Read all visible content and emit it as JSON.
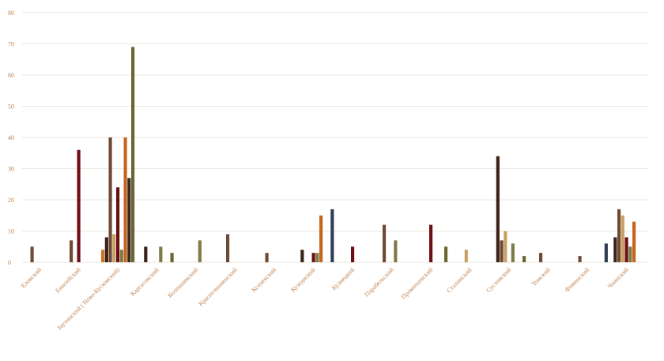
{
  "chart_data": {
    "type": "bar",
    "categories": [
      "Еловский",
      "Енисейский",
      "Заутинский ( Ново-Кусковский)",
      "Каргасокский",
      "Колпашевский",
      "Красноэнаменский",
      "Ксеневский",
      "Кузедиский",
      "Кузнецкий",
      "Парабельский",
      "Прокопьевский",
      "Сталинский",
      "Сусловский",
      "Томский",
      "Фоминский",
      "Чаинский"
    ],
    "series": [
      {
        "color": "#d2731f",
        "values": [
          null,
          null,
          4,
          null,
          null,
          null,
          null,
          null,
          null,
          null,
          null,
          null,
          null,
          null,
          null,
          null
        ]
      },
      {
        "color": "#3a2218",
        "values": [
          null,
          null,
          8,
          5,
          null,
          null,
          null,
          4,
          null,
          null,
          null,
          null,
          34,
          null,
          null,
          8
        ]
      },
      {
        "color": "#6e4a36",
        "values": [
          5,
          7,
          40,
          null,
          null,
          9,
          3,
          null,
          null,
          12,
          null,
          null,
          7,
          3,
          2,
          17
        ]
      },
      {
        "color": "#c8a060",
        "values": [
          null,
          null,
          9,
          null,
          null,
          null,
          null,
          null,
          null,
          null,
          null,
          4,
          10,
          null,
          null,
          15
        ]
      },
      {
        "color": "#6b0f14",
        "values": [
          null,
          36,
          24,
          null,
          null,
          null,
          null,
          3,
          5,
          null,
          12,
          null,
          null,
          null,
          null,
          8
        ]
      },
      {
        "color": "#7d7a45",
        "values": [
          null,
          null,
          4,
          5,
          7,
          null,
          null,
          3,
          null,
          7,
          null,
          null,
          6,
          null,
          null,
          5
        ]
      },
      {
        "color": "#c8651c",
        "values": [
          null,
          null,
          40,
          null,
          null,
          null,
          null,
          15,
          null,
          null,
          null,
          null,
          null,
          null,
          null,
          13
        ]
      },
      {
        "color": "#3a2a20",
        "values": [
          null,
          null,
          27,
          null,
          null,
          null,
          null,
          null,
          null,
          null,
          null,
          null,
          null,
          null,
          null,
          null
        ]
      },
      {
        "color": "#6b6630",
        "values": [
          null,
          null,
          69,
          3,
          null,
          null,
          null,
          null,
          null,
          null,
          5,
          null,
          2,
          null,
          null,
          null
        ]
      },
      {
        "color": "#2f3e52",
        "values": [
          null,
          null,
          null,
          null,
          null,
          null,
          null,
          17,
          null,
          null,
          null,
          null,
          null,
          null,
          6,
          null
        ]
      }
    ],
    "ylim": [
      0,
      80
    ],
    "yticks": [
      0,
      10,
      20,
      30,
      40,
      50,
      60,
      70,
      80
    ],
    "grid": true
  }
}
